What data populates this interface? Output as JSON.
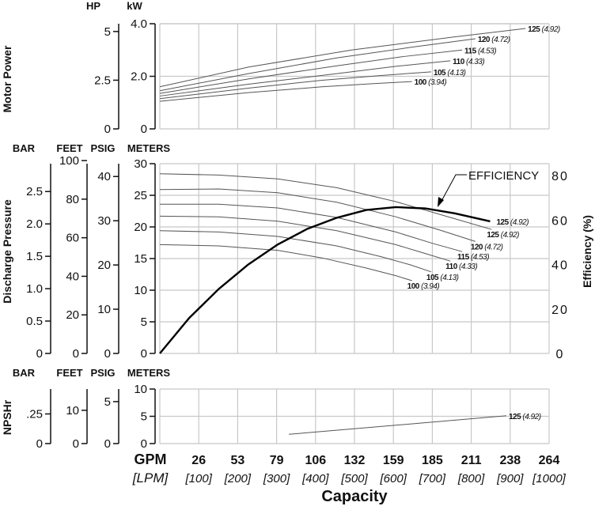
{
  "chart_data": [
    {
      "type": "line",
      "title": "Motor Power",
      "ylabel": "Motor Power",
      "y_axes": [
        {
          "unit": "HP",
          "ticks": [
            5,
            2.5,
            0
          ],
          "tick_labels": [
            "5",
            "2.5",
            "0"
          ],
          "range": [
            0,
            5.4
          ]
        },
        {
          "unit": "kW",
          "ticks": [
            4.0,
            2.0,
            0
          ],
          "tick_labels": [
            "4.0",
            "2.0",
            "0"
          ],
          "range": [
            0,
            4.0
          ]
        }
      ],
      "xlim": [
        0,
        264
      ],
      "series": [
        {
          "name": "125",
          "sub": "(4.92)",
          "x": [
            0,
            60,
            130,
            200,
            248
          ],
          "y": [
            1.6,
            2.35,
            3.0,
            3.5,
            3.82
          ]
        },
        {
          "name": "120",
          "sub": "(4.72)",
          "x": [
            0,
            60,
            120,
            170,
            214
          ],
          "y": [
            1.45,
            2.1,
            2.7,
            3.1,
            3.43
          ]
        },
        {
          "name": "115",
          "sub": "(4.53)",
          "x": [
            0,
            60,
            120,
            165,
            205
          ],
          "y": [
            1.35,
            1.9,
            2.4,
            2.75,
            3.0
          ]
        },
        {
          "name": "110",
          "sub": "(4.33)",
          "x": [
            0,
            60,
            120,
            160,
            197
          ],
          "y": [
            1.25,
            1.7,
            2.1,
            2.38,
            2.59
          ]
        },
        {
          "name": "105",
          "sub": "(4.13)",
          "x": [
            0,
            60,
            110,
            150,
            184
          ],
          "y": [
            1.15,
            1.55,
            1.85,
            2.03,
            2.17
          ]
        },
        {
          "name": "100",
          "sub": "(3.94)",
          "x": [
            0,
            60,
            110,
            145,
            171
          ],
          "y": [
            1.05,
            1.38,
            1.6,
            1.72,
            1.8
          ]
        }
      ]
    },
    {
      "type": "line",
      "title": "Discharge Pressure",
      "ylabel": "Discharge Pressure",
      "y2label": "Efficiency (%)",
      "y_axes": [
        {
          "unit": "BAR",
          "ticks": [
            2.5,
            2.0,
            1.5,
            1.0,
            0.5,
            0
          ],
          "tick_labels": [
            "2.5",
            "2.0",
            "1.5",
            "1.0",
            "0.5",
            "0"
          ],
          "range": [
            0,
            2.93
          ]
        },
        {
          "unit": "FEET",
          "ticks": [
            100,
            80,
            60,
            40,
            20,
            0
          ],
          "tick_labels": [
            "100",
            "80",
            "60",
            "40",
            "20",
            "0"
          ],
          "range": [
            0,
            98.4
          ]
        },
        {
          "unit": "PSIG",
          "ticks": [
            40,
            30,
            20,
            10,
            0
          ],
          "tick_labels": [
            "40",
            "30",
            "20",
            "10",
            "0"
          ],
          "range": [
            0,
            42.9
          ]
        },
        {
          "unit": "METERS",
          "ticks": [
            30,
            25,
            20,
            15,
            10,
            5,
            0
          ],
          "tick_labels": [
            "30",
            "25",
            "20",
            "15",
            "10",
            "5",
            "0"
          ],
          "range": [
            0,
            30
          ]
        }
      ],
      "y2_axis": {
        "ticks": [
          80,
          60,
          40,
          20,
          0
        ],
        "tick_labels": [
          "80",
          "60",
          "40",
          "20",
          "0"
        ],
        "range": [
          0,
          80
        ]
      },
      "xlim": [
        0,
        264
      ],
      "series": [
        {
          "name": "125",
          "sub": "(4.92)",
          "x": [
            0,
            40,
            80,
            120,
            160,
            200,
            225
          ],
          "y": [
            28.4,
            28.2,
            27.6,
            26.2,
            24.0,
            21.3,
            19.6
          ]
        },
        {
          "name": "120",
          "sub": "(4.72)",
          "x": [
            0,
            40,
            80,
            120,
            160,
            190,
            214
          ],
          "y": [
            25.9,
            26.0,
            25.4,
            23.9,
            21.6,
            19.5,
            17.7
          ]
        },
        {
          "name": "115",
          "sub": "(4.53)",
          "x": [
            0,
            40,
            80,
            120,
            160,
            185,
            205
          ],
          "y": [
            23.6,
            23.6,
            23.0,
            21.5,
            19.2,
            17.4,
            16.1
          ]
        },
        {
          "name": "110",
          "sub": "(4.33)",
          "x": [
            0,
            40,
            80,
            120,
            160,
            180,
            197
          ],
          "y": [
            21.7,
            21.6,
            20.9,
            19.4,
            17.2,
            15.8,
            14.6
          ]
        },
        {
          "name": "105",
          "sub": "(4.13)",
          "x": [
            0,
            40,
            80,
            120,
            150,
            170,
            184
          ],
          "y": [
            19.4,
            19.2,
            18.5,
            17.0,
            15.3,
            14.0,
            12.9
          ]
        },
        {
          "name": "100",
          "sub": "(3.94)",
          "x": [
            0,
            40,
            80,
            110,
            140,
            160,
            171
          ],
          "y": [
            17.2,
            17.0,
            16.3,
            15.1,
            13.5,
            12.3,
            11.5
          ]
        }
      ],
      "efficiency": {
        "name": "EFFICIENCY",
        "label": "125",
        "sub": "(4.92)",
        "x": [
          0,
          20,
          40,
          60,
          80,
          100,
          120,
          140,
          160,
          180,
          200,
          224
        ],
        "y": [
          0,
          16,
          29,
          40,
          49,
          56,
          61,
          64.5,
          65.8,
          65.2,
          63,
          59.4
        ]
      }
    },
    {
      "type": "line",
      "title": "NPSHr",
      "ylabel": "NPSHr",
      "y_axes": [
        {
          "unit": "BAR",
          "ticks": [
            0.25,
            0
          ],
          "tick_labels": [
            ".25",
            "0"
          ],
          "range": [
            0,
            0.46
          ]
        },
        {
          "unit": "FEET",
          "ticks": [
            10,
            0
          ],
          "tick_labels": [
            "10",
            "0"
          ],
          "range": [
            0,
            16.4
          ]
        },
        {
          "unit": "PSIG",
          "ticks": [
            5,
            0
          ],
          "tick_labels": [
            "5",
            "0"
          ],
          "range": [
            0,
            6.5
          ]
        },
        {
          "unit": "METERS",
          "ticks": [
            10,
            5,
            0
          ],
          "tick_labels": [
            "10",
            "5",
            "0"
          ],
          "range": [
            0,
            10
          ]
        }
      ],
      "xlim": [
        0,
        264
      ],
      "series": [
        {
          "name": "125",
          "sub": "(4.92)",
          "x": [
            87.5,
            235
          ],
          "y": [
            1.7,
            5.1
          ]
        }
      ]
    }
  ],
  "x_axis": {
    "title": "Capacity",
    "unit_gpm": "GPM",
    "unit_lpm": "[LPM]",
    "gpm_ticks": [
      "26",
      "53",
      "79",
      "106",
      "132",
      "159",
      "185",
      "211",
      "238",
      "264"
    ],
    "lpm_ticks": [
      "[100]",
      "[200]",
      "[300]",
      "[400]",
      "[500]",
      "[600]",
      "[700]",
      "[800]",
      "[900]",
      "[1000]"
    ]
  }
}
